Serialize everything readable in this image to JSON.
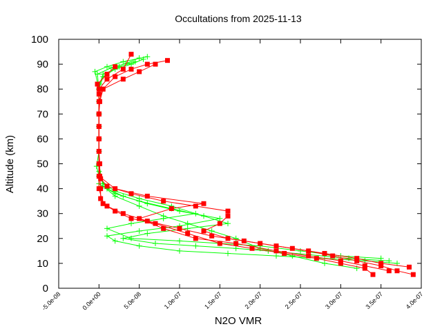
{
  "chart_data": {
    "type": "line",
    "title": "Occultations from 2025-11-13",
    "xlabel": "N2O VMR",
    "ylabel": "Altitude (km)",
    "xlim": [
      -5e-08,
      4e-07
    ],
    "ylim": [
      0,
      100
    ],
    "xticks": [
      -5e-08,
      0,
      5e-08,
      1e-07,
      1.5e-07,
      2e-07,
      2.5e-07,
      3e-07,
      3.5e-07,
      4e-07
    ],
    "xtick_labels": [
      "-5.0e-08",
      "0.0e+00",
      "5.0e-08",
      "1.0e-07",
      "1.5e-07",
      "2.0e-07",
      "2.5e-07",
      "3.0e-07",
      "3.5e-07",
      "4.0e-07"
    ],
    "yticks": [
      0,
      10,
      20,
      30,
      40,
      50,
      60,
      70,
      80,
      90,
      100
    ],
    "ytick_labels": [
      "0",
      "10",
      "20",
      "30",
      "40",
      "50",
      "60",
      "70",
      "80",
      "90",
      "100"
    ],
    "grid": false,
    "legend": "none",
    "colors": {
      "green": "#00ff00",
      "red": "#ff0000"
    },
    "series": [
      {
        "color": "#00ff00",
        "marker": "plus",
        "points": [
          [
            3.7e-07,
            10
          ],
          [
            3.3e-07,
            11
          ],
          [
            2.8e-07,
            12
          ],
          [
            2.2e-07,
            13
          ],
          [
            1.6e-07,
            14
          ],
          [
            1e-07,
            15
          ],
          [
            5e-08,
            17
          ],
          [
            2e-08,
            19
          ],
          [
            1e-08,
            21
          ],
          [
            5e-08,
            23
          ],
          [
            1e-07,
            25
          ],
          [
            1.5e-07,
            28
          ],
          [
            1e-07,
            31
          ],
          [
            6e-08,
            34
          ],
          [
            3e-08,
            37
          ],
          [
            1e-08,
            40
          ],
          [
            0,
            45
          ],
          [
            -3e-09,
            49
          ],
          [
            0,
            55
          ],
          [
            0,
            60
          ],
          [
            0,
            65
          ],
          [
            0,
            70
          ],
          [
            0,
            75
          ],
          [
            0,
            80
          ],
          [
            -5e-09,
            87
          ],
          [
            1e-08,
            89
          ],
          [
            3e-08,
            91
          ],
          [
            6e-08,
            93
          ]
        ]
      },
      {
        "color": "#00ff00",
        "marker": "plus",
        "points": [
          [
            3.5e-07,
            12
          ],
          [
            3e-07,
            13
          ],
          [
            2.5e-07,
            15
          ],
          [
            2e-07,
            17
          ],
          [
            1.5e-07,
            18
          ],
          [
            1e-07,
            19
          ],
          [
            4e-08,
            20
          ],
          [
            1e-08,
            24
          ],
          [
            4e-08,
            26
          ],
          [
            8e-08,
            28
          ],
          [
            1.2e-07,
            30
          ],
          [
            9e-08,
            33
          ],
          [
            5e-08,
            36
          ],
          [
            2e-08,
            39
          ],
          [
            5e-09,
            42
          ],
          [
            0,
            47
          ],
          [
            0,
            55
          ],
          [
            0,
            65
          ],
          [
            0,
            75
          ],
          [
            1e-09,
            82
          ],
          [
            5e-09,
            86
          ],
          [
            2e-08,
            88
          ],
          [
            4e-08,
            90
          ],
          [
            5.5e-08,
            92
          ]
        ]
      },
      {
        "color": "#00ff00",
        "marker": "plus",
        "points": [
          [
            3.2e-07,
            8
          ],
          [
            2.8e-07,
            10
          ],
          [
            2.4e-07,
            13
          ],
          [
            2e-07,
            16
          ],
          [
            1.7e-07,
            20
          ],
          [
            1.4e-07,
            23
          ],
          [
            1.1e-07,
            26
          ],
          [
            8e-08,
            29
          ],
          [
            5e-08,
            33
          ],
          [
            2e-08,
            37
          ],
          [
            5e-09,
            41
          ],
          [
            0,
            50
          ],
          [
            0,
            60
          ],
          [
            0,
            70
          ],
          [
            0,
            80
          ],
          [
            -2e-09,
            86
          ],
          [
            1.5e-08,
            88.5
          ],
          [
            3.5e-08,
            90.5
          ],
          [
            5e-08,
            92.5
          ]
        ]
      },
      {
        "color": "#00ff00",
        "marker": "plus",
        "points": [
          [
            3.6e-07,
            11
          ],
          [
            3.1e-07,
            12
          ],
          [
            2.6e-07,
            13.5
          ],
          [
            2.1e-07,
            15
          ],
          [
            1.7e-07,
            16
          ],
          [
            1.2e-07,
            17
          ],
          [
            7e-08,
            18
          ],
          [
            3e-08,
            20
          ],
          [
            6e-08,
            22
          ],
          [
            1.1e-07,
            24
          ],
          [
            1.6e-07,
            26
          ],
          [
            1.3e-07,
            29
          ],
          [
            9e-08,
            32
          ],
          [
            5e-08,
            35
          ],
          [
            2e-08,
            38
          ],
          [
            0,
            42
          ],
          [
            0,
            50
          ],
          [
            0,
            60
          ],
          [
            0,
            70
          ],
          [
            0,
            80
          ],
          [
            5e-09,
            85
          ],
          [
            2.5e-08,
            89
          ],
          [
            4.5e-08,
            91
          ]
        ]
      },
      {
        "color": "#ff0000",
        "marker": "square",
        "points": [
          [
            3.9e-07,
            5.5
          ],
          [
            3.7e-07,
            7
          ],
          [
            3.5e-07,
            9
          ],
          [
            3.2e-07,
            11
          ],
          [
            2.9e-07,
            13
          ],
          [
            2.6e-07,
            15
          ],
          [
            2.2e-07,
            17
          ],
          [
            1.8e-07,
            19
          ],
          [
            1.4e-07,
            21
          ],
          [
            1e-07,
            24
          ],
          [
            6e-08,
            27
          ],
          [
            3e-08,
            30
          ],
          [
            1e-08,
            33
          ],
          [
            2e-09,
            36
          ],
          [
            2e-09,
            40
          ],
          [
            1e-09,
            45
          ],
          [
            1e-09,
            50
          ],
          [
            0,
            55
          ],
          [
            0,
            60
          ],
          [
            0,
            65
          ],
          [
            0,
            70
          ],
          [
            1e-09,
            75
          ],
          [
            5e-09,
            80
          ],
          [
            2e-08,
            85
          ],
          [
            4e-08,
            88
          ],
          [
            6e-08,
            90
          ],
          [
            8.5e-08,
            91.5
          ]
        ]
      },
      {
        "color": "#ff0000",
        "marker": "square",
        "points": [
          [
            3.85e-07,
            8.5
          ],
          [
            3.5e-07,
            10
          ],
          [
            3.2e-07,
            12
          ],
          [
            2.8e-07,
            14
          ],
          [
            2.4e-07,
            16
          ],
          [
            2e-07,
            18
          ],
          [
            1.6e-07,
            20
          ],
          [
            1.3e-07,
            23
          ],
          [
            1.5e-07,
            26
          ],
          [
            1.6e-07,
            29
          ],
          [
            1.6e-07,
            31
          ],
          [
            1.2e-07,
            33
          ],
          [
            8e-08,
            35
          ],
          [
            4e-08,
            38
          ],
          [
            1e-08,
            41
          ],
          [
            2e-09,
            44
          ],
          [
            0,
            50
          ],
          [
            0,
            60
          ],
          [
            0,
            70
          ],
          [
            0,
            80
          ],
          [
            1e-08,
            84
          ],
          [
            3e-08,
            88
          ],
          [
            4e-08,
            94
          ]
        ]
      },
      {
        "color": "#ff0000",
        "marker": "square",
        "points": [
          [
            3.4e-07,
            5.5
          ],
          [
            3.3e-07,
            8
          ],
          [
            3e-07,
            10
          ],
          [
            2.7e-07,
            12
          ],
          [
            2.3e-07,
            14
          ],
          [
            1.9e-07,
            16
          ],
          [
            1.5e-07,
            18
          ],
          [
            1.1e-07,
            22
          ],
          [
            7e-08,
            26
          ],
          [
            4e-08,
            28
          ],
          [
            2e-08,
            31
          ],
          [
            5e-09,
            34
          ],
          [
            0,
            40
          ],
          [
            0,
            50
          ],
          [
            0,
            60
          ],
          [
            0,
            70
          ],
          [
            0,
            78
          ],
          [
            -2e-09,
            82
          ],
          [
            1e-08,
            86
          ],
          [
            2e-08,
            89
          ]
        ]
      },
      {
        "color": "#ff0000",
        "marker": "square",
        "points": [
          [
            3.6e-07,
            7
          ],
          [
            3.3e-07,
            9
          ],
          [
            3e-07,
            11
          ],
          [
            2.6e-07,
            13
          ],
          [
            2.2e-07,
            15
          ],
          [
            1.7e-07,
            18
          ],
          [
            1.2e-07,
            20
          ],
          [
            8e-08,
            24
          ],
          [
            5e-08,
            28
          ],
          [
            9e-08,
            32
          ],
          [
            1.3e-07,
            34
          ],
          [
            6e-08,
            37
          ],
          [
            2e-08,
            40
          ],
          [
            0,
            45
          ],
          [
            0,
            55
          ],
          [
            0,
            65
          ],
          [
            0,
            75
          ],
          [
            5e-09,
            80
          ],
          [
            3e-08,
            84
          ],
          [
            5e-08,
            87
          ],
          [
            7e-08,
            90
          ]
        ]
      }
    ]
  }
}
